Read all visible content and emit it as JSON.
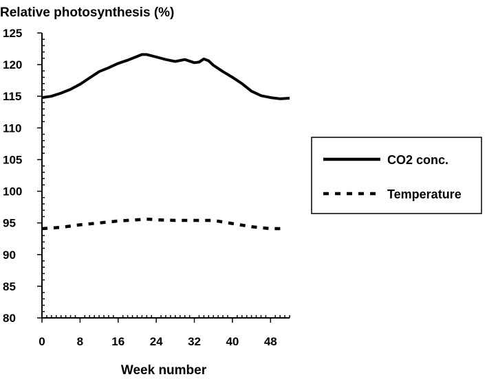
{
  "chart_data": {
    "type": "line",
    "title": "Relative photosynthesis (%)",
    "xlabel": "Week number",
    "ylabel": "Relative photosynthesis (%)",
    "xlim": [
      0,
      52
    ],
    "ylim": [
      80,
      125
    ],
    "x_ticks": [
      0,
      8,
      16,
      24,
      32,
      40,
      48
    ],
    "y_ticks": [
      80,
      85,
      90,
      95,
      100,
      105,
      110,
      115,
      120,
      125
    ],
    "grid": false,
    "legend_position": "right",
    "series": [
      {
        "name": "CO2 conc.",
        "style": "solid",
        "color": "#000000",
        "x": [
          0,
          2,
          4,
          6,
          8,
          10,
          12,
          14,
          16,
          18,
          20,
          21,
          22,
          24,
          26,
          28,
          30,
          32,
          33,
          34,
          35,
          36,
          38,
          40,
          42,
          44,
          46,
          48,
          50,
          52
        ],
        "y": [
          114.8,
          115.0,
          115.5,
          116.1,
          116.9,
          117.9,
          118.9,
          119.5,
          120.2,
          120.7,
          121.3,
          121.6,
          121.6,
          121.2,
          120.8,
          120.5,
          120.8,
          120.3,
          120.4,
          120.9,
          120.6,
          119.9,
          118.9,
          118.0,
          117.0,
          115.8,
          115.1,
          114.8,
          114.6,
          114.7
        ]
      },
      {
        "name": "Temperature",
        "style": "dashed",
        "color": "#000000",
        "x": [
          0,
          4,
          8,
          12,
          16,
          20,
          22,
          24,
          28,
          32,
          36,
          40,
          44,
          48,
          51
        ],
        "y": [
          94.1,
          94.3,
          94.7,
          95.0,
          95.3,
          95.5,
          95.6,
          95.5,
          95.4,
          95.4,
          95.4,
          94.9,
          94.4,
          94.1,
          94.1
        ]
      }
    ]
  }
}
